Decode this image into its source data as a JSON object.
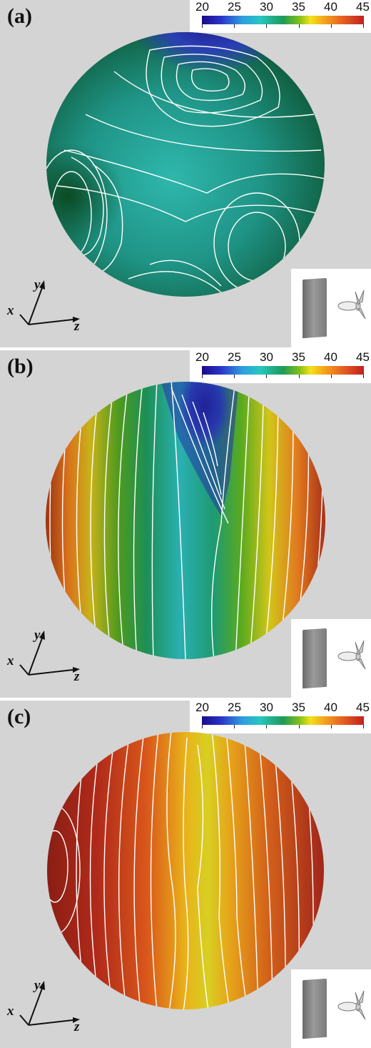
{
  "panels": [
    {
      "label": "(a)"
    },
    {
      "label": "(b)"
    },
    {
      "label": "(c)"
    }
  ],
  "colorbar": {
    "ticks": [
      "20",
      "25",
      "30",
      "35",
      "40",
      "45"
    ],
    "colors": [
      "#1a0a8c",
      "#2f9ee0",
      "#27c6c0",
      "#1e9a57",
      "#f2e21a",
      "#e86420",
      "#c02020"
    ]
  },
  "axes": {
    "x": "x",
    "y": "y",
    "z": "z"
  },
  "icons": {
    "inset": "propeller-body-icon",
    "triad": "axis-triad-icon"
  }
}
